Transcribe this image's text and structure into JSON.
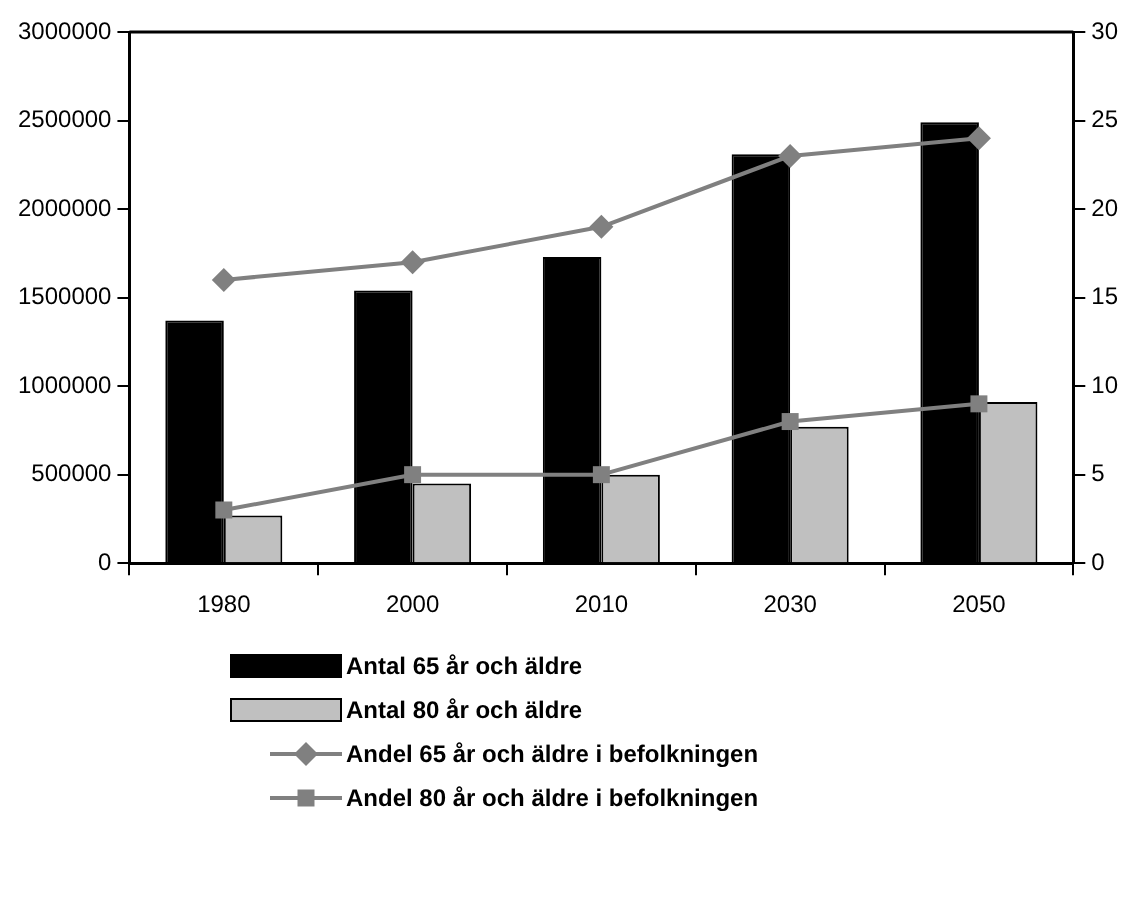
{
  "chart_data": {
    "type": "bar",
    "categories": [
      "1980",
      "2000",
      "2010",
      "2030",
      "2050"
    ],
    "series": [
      {
        "name": "Antal 65 år och äldre",
        "type": "bar",
        "color": "#000000",
        "values": [
          1370000,
          1540000,
          1730000,
          2310000,
          2490000
        ]
      },
      {
        "name": "Antal 80 år och äldre",
        "color": "#c0c0c0",
        "values": [
          270000,
          450000,
          500000,
          770000,
          910000
        ]
      },
      {
        "name": "Andel 65 år och äldre i befolkningen",
        "type": "line",
        "axis": "y2",
        "marker": "diamond",
        "color": "#808080",
        "values": [
          16,
          17,
          19,
          23,
          24
        ]
      },
      {
        "name": "Andel 80 år och äldre i befolkningen",
        "type": "line",
        "axis": "y2",
        "marker": "square",
        "color": "#808080",
        "values": [
          3,
          5,
          5,
          8,
          9
        ]
      }
    ],
    "ylim": [
      0,
      3000000
    ],
    "yticks": [
      0,
      500000,
      1000000,
      1500000,
      2000000,
      2500000,
      3000000
    ],
    "y2lim": [
      0,
      30
    ],
    "y2ticks": [
      0,
      5,
      10,
      15,
      20,
      25,
      30
    ],
    "grid": false,
    "legend": "bottom"
  }
}
